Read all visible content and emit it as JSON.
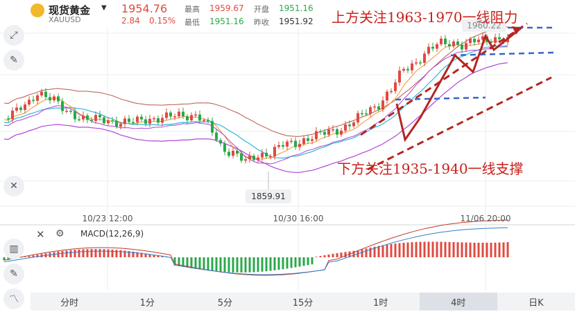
{
  "header": {
    "symbol_name": "现货黄金",
    "symbol_code": "XAUUSD",
    "price": "1954.76",
    "change": "2.84",
    "change_pct": "0.15%",
    "high_label": "最高",
    "high_value": "1959.67",
    "low_label": "最低",
    "low_value": "1951.16",
    "open_label": "开盘",
    "open_value": "1951.16",
    "prev_close_label": "昨收",
    "prev_close_value": "1951.92"
  },
  "annotations": {
    "top": "上方关注1963-1970一线阻力",
    "bottom": "下方关注1935-1940一线支撑"
  },
  "chart_data": {
    "type": "candlestick",
    "x_labels": [
      "10/23 12:00",
      "10/30 16:00",
      "11/06 20:00"
    ],
    "last_price_label": "1960.22",
    "low_marker_label": "1859.91",
    "indicator": "MACD(12,26,9)",
    "colors": {
      "up": "#e04a3f",
      "down": "#2aa84a",
      "upper_band": "#b5584a",
      "lower_band": "#b044d6",
      "ma_cyan": "#27b8d8",
      "ma_orange": "#f0922c",
      "trend": "#b52520",
      "dashed": "#3a62c9"
    }
  },
  "timeframes": [
    {
      "label": "分时",
      "active": false
    },
    {
      "label": "1分",
      "active": false
    },
    {
      "label": "5分",
      "active": false
    },
    {
      "label": "15分",
      "active": false
    },
    {
      "label": "1时",
      "active": false
    },
    {
      "label": "4时",
      "active": true
    },
    {
      "label": "日K",
      "active": false
    }
  ]
}
